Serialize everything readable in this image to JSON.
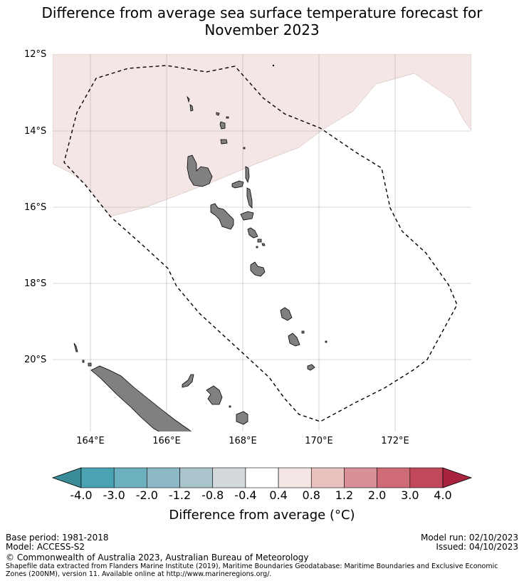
{
  "title": {
    "line1": "Difference from average sea surface temperature forecast for",
    "line2": "November 2023"
  },
  "axes": {
    "lat_labels": [
      "12°S",
      "14°S",
      "16°S",
      "18°S",
      "20°S"
    ],
    "lon_labels": [
      "164°E",
      "166°E",
      "168°E",
      "170°E",
      "172°E"
    ]
  },
  "legend": {
    "title": "Difference from average (°C)",
    "ticks": [
      "-4.0",
      "-3.0",
      "-2.0",
      "-1.2",
      "-0.8",
      "-0.4",
      "0.4",
      "0.8",
      "1.2",
      "2.0",
      "3.0",
      "4.0"
    ],
    "colors": [
      "#3a8c99",
      "#4aa3b3",
      "#6cb0bf",
      "#8db8c5",
      "#aac4cc",
      "#d4d9db",
      "#ffffff",
      "#f5e6e6",
      "#e9c2c0",
      "#d98f97",
      "#cf6a77",
      "#c0485a",
      "#a8233d"
    ],
    "overlay_color": "#f5e6e6",
    "land_color": "#808080"
  },
  "footer": {
    "base_period": "Base period: 1981-2018",
    "model": "Model: ACCESS-S2",
    "model_run": "Model run: 02/10/2023",
    "issued": "Issued: 04/10/2023",
    "copyright": "© Commonwealth of Australia 2023, Australian Bureau of Meteorology",
    "shapefile_note": "Shapefile data extracted from Flanders Marine Institute (2019), Maritime Boundaries Geodatabase: Maritime Boundaries and Exclusive Economic Zones (200NM), version 11. Available online at http://www.marineregions.org/."
  }
}
